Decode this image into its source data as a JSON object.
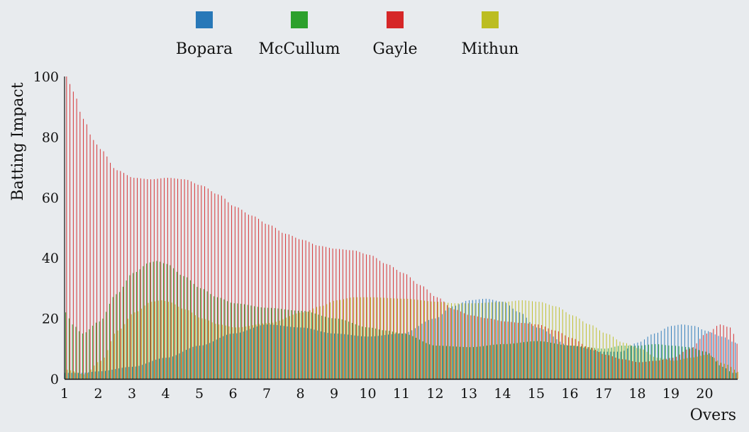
{
  "chart_data": {
    "type": "bar",
    "xlabel": "Overs",
    "ylabel": "Batting Impact",
    "ylim": [
      0,
      100
    ],
    "xlim": [
      1,
      21
    ],
    "yticks": [
      0,
      20,
      40,
      60,
      80,
      100
    ],
    "xticks": [
      "1",
      "2",
      "3",
      "4",
      "5",
      "6",
      "7",
      "8",
      "9",
      "10",
      "11",
      "12",
      "13",
      "14",
      "15",
      "16",
      "17",
      "18",
      "19",
      "20"
    ],
    "legend": {
      "placement": "top"
    },
    "grid": false,
    "series": [
      {
        "name": "Bopara",
        "color": "#2878b8",
        "knots": [
          [
            1.0,
            2
          ],
          [
            1.5,
            2
          ],
          [
            2.0,
            2.5
          ],
          [
            3.0,
            4
          ],
          [
            4.0,
            7
          ],
          [
            5.0,
            11
          ],
          [
            6.0,
            15
          ],
          [
            7.0,
            18
          ],
          [
            8.0,
            17
          ],
          [
            9.0,
            15
          ],
          [
            10.0,
            14
          ],
          [
            11.0,
            15
          ],
          [
            12.0,
            20
          ],
          [
            12.5,
            24
          ],
          [
            13.0,
            26
          ],
          [
            13.5,
            26.5
          ],
          [
            14.0,
            25.5
          ],
          [
            14.5,
            22
          ],
          [
            15.0,
            17
          ],
          [
            16.0,
            11
          ],
          [
            17.0,
            9
          ],
          [
            17.5,
            9
          ],
          [
            18.0,
            12
          ],
          [
            18.5,
            15
          ],
          [
            19.0,
            17.5
          ],
          [
            19.3,
            18
          ],
          [
            19.7,
            17.5
          ],
          [
            20.0,
            16
          ],
          [
            20.5,
            14
          ],
          [
            20.9,
            12
          ]
        ]
      },
      {
        "name": "McCullum",
        "color": "#2ca02c",
        "knots": [
          [
            1.0,
            22
          ],
          [
            1.2,
            18
          ],
          [
            1.5,
            15
          ],
          [
            2.0,
            19
          ],
          [
            2.5,
            28
          ],
          [
            3.0,
            35
          ],
          [
            3.5,
            38.5
          ],
          [
            3.7,
            39
          ],
          [
            4.0,
            38
          ],
          [
            4.5,
            34
          ],
          [
            5.0,
            30
          ],
          [
            5.5,
            27
          ],
          [
            6.0,
            25
          ],
          [
            7.0,
            23.5
          ],
          [
            8.0,
            22.5
          ],
          [
            9.0,
            20
          ],
          [
            10.0,
            17
          ],
          [
            10.5,
            16
          ],
          [
            11.0,
            15
          ],
          [
            12.0,
            11
          ],
          [
            13.0,
            10.5
          ],
          [
            14.0,
            11.5
          ],
          [
            15.0,
            12.5
          ],
          [
            16.0,
            11
          ],
          [
            17.0,
            10
          ],
          [
            17.5,
            11
          ],
          [
            18.0,
            11
          ],
          [
            18.5,
            11.5
          ],
          [
            19.0,
            11
          ],
          [
            19.5,
            10.5
          ],
          [
            20.0,
            9
          ],
          [
            20.5,
            4
          ],
          [
            20.8,
            2
          ]
        ]
      },
      {
        "name": "Gayle",
        "color": "#d62728",
        "knots": [
          [
            1.0,
            100
          ],
          [
            1.2,
            95
          ],
          [
            1.5,
            86
          ],
          [
            1.8,
            79
          ],
          [
            2.0,
            76
          ],
          [
            2.5,
            69
          ],
          [
            3.0,
            66.5
          ],
          [
            3.5,
            66
          ],
          [
            4.0,
            66.5
          ],
          [
            4.5,
            66
          ],
          [
            5.0,
            64
          ],
          [
            5.5,
            61
          ],
          [
            6.0,
            57
          ],
          [
            6.5,
            54
          ],
          [
            7.0,
            51
          ],
          [
            7.5,
            48
          ],
          [
            8.0,
            46
          ],
          [
            8.5,
            44
          ],
          [
            9.0,
            43
          ],
          [
            9.5,
            42.5
          ],
          [
            10.0,
            41
          ],
          [
            10.5,
            38
          ],
          [
            11.0,
            35
          ],
          [
            11.5,
            31
          ],
          [
            12.0,
            27
          ],
          [
            12.5,
            23
          ],
          [
            13.0,
            21
          ],
          [
            13.5,
            20
          ],
          [
            14.0,
            19
          ],
          [
            14.5,
            18.5
          ],
          [
            15.0,
            18
          ],
          [
            15.5,
            16
          ],
          [
            16.0,
            13.5
          ],
          [
            16.5,
            10.5
          ],
          [
            17.0,
            8
          ],
          [
            17.5,
            6.5
          ],
          [
            18.0,
            5.5
          ],
          [
            18.5,
            6
          ],
          [
            19.0,
            7
          ],
          [
            19.5,
            10
          ],
          [
            20.0,
            15
          ],
          [
            20.4,
            18
          ],
          [
            20.7,
            17
          ],
          [
            20.95,
            11
          ]
        ]
      },
      {
        "name": "Mithun",
        "color": "#bcbd22",
        "knots": [
          [
            1.0,
            3
          ],
          [
            1.5,
            1.5
          ],
          [
            2.0,
            6
          ],
          [
            2.5,
            16
          ],
          [
            3.0,
            22
          ],
          [
            3.5,
            25.5
          ],
          [
            3.8,
            26
          ],
          [
            4.0,
            25.5
          ],
          [
            4.5,
            23
          ],
          [
            5.0,
            20
          ],
          [
            5.5,
            18
          ],
          [
            6.0,
            17
          ],
          [
            7.0,
            18.5
          ],
          [
            8.0,
            22
          ],
          [
            8.5,
            24
          ],
          [
            9.0,
            26
          ],
          [
            9.5,
            27
          ],
          [
            10.0,
            27
          ],
          [
            11.0,
            26.5
          ],
          [
            12.0,
            25.5
          ],
          [
            12.5,
            25
          ],
          [
            13.0,
            25
          ],
          [
            14.0,
            25.5
          ],
          [
            14.5,
            26
          ],
          [
            15.0,
            25.5
          ],
          [
            15.5,
            24
          ],
          [
            16.0,
            21
          ],
          [
            16.5,
            18
          ],
          [
            17.0,
            15
          ],
          [
            17.5,
            12
          ],
          [
            18.0,
            10
          ],
          [
            18.5,
            7
          ],
          [
            19.0,
            6
          ],
          [
            19.5,
            7
          ],
          [
            20.0,
            8
          ],
          [
            20.5,
            5
          ],
          [
            21.0,
            2
          ]
        ]
      }
    ]
  }
}
